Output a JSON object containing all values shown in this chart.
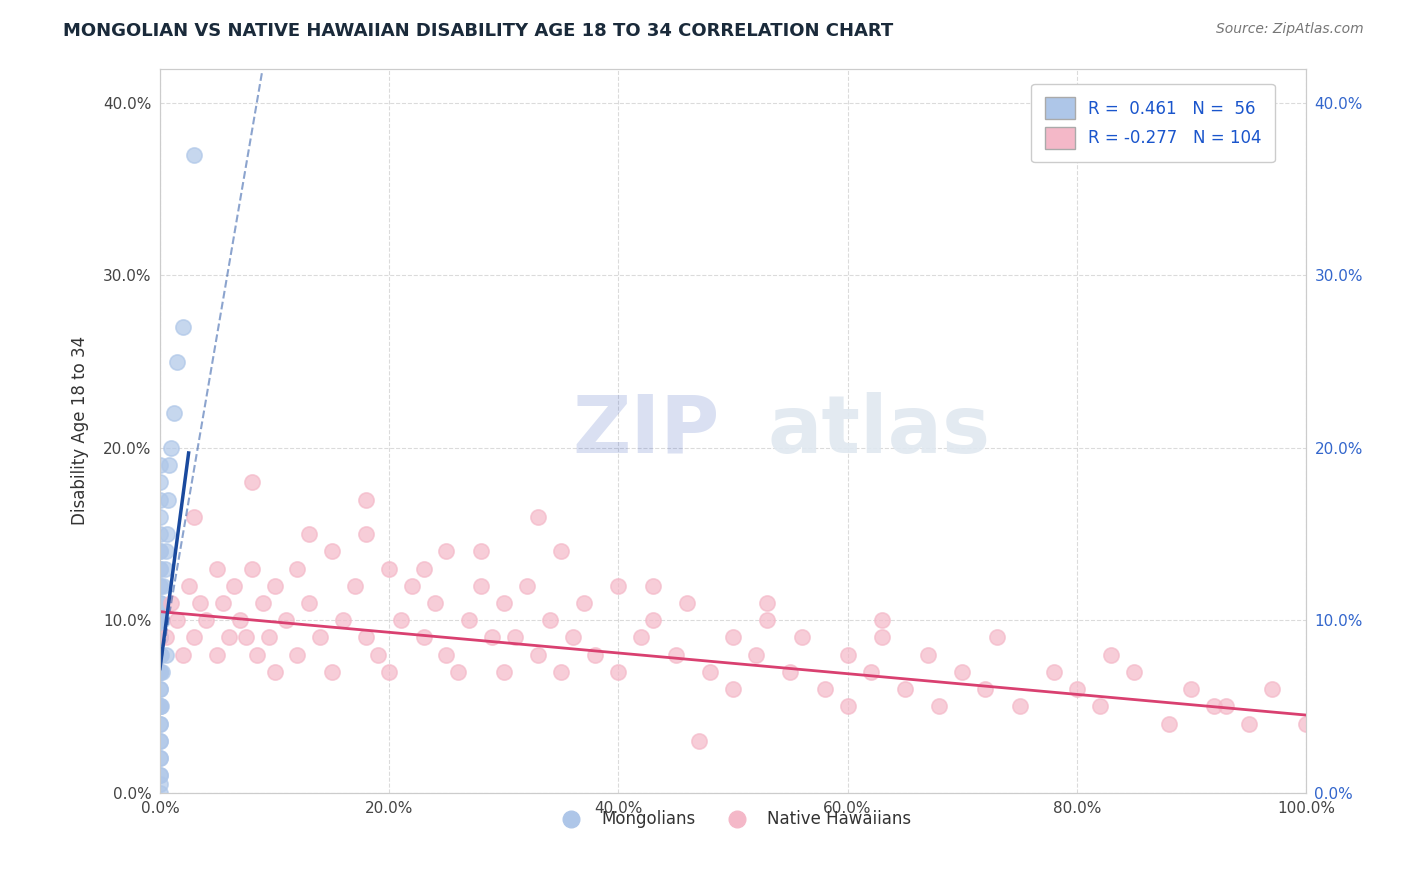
{
  "title": "MONGOLIAN VS NATIVE HAWAIIAN DISABILITY AGE 18 TO 34 CORRELATION CHART",
  "source": "Source: ZipAtlas.com",
  "ylabel": "Disability Age 18 to 34",
  "xlim": [
    0.0,
    1.0
  ],
  "ylim": [
    0.0,
    0.42
  ],
  "x_ticks": [
    0.0,
    0.2,
    0.4,
    0.6,
    0.8,
    1.0
  ],
  "x_tick_labels": [
    "0.0%",
    "20.0%",
    "40.0%",
    "60.0%",
    "80.0%",
    "100.0%"
  ],
  "y_ticks": [
    0.0,
    0.1,
    0.2,
    0.3,
    0.4
  ],
  "y_tick_labels": [
    "0.0%",
    "10.0%",
    "20.0%",
    "30.0%",
    "40.0%"
  ],
  "mongolian_R": 0.461,
  "mongolian_N": 56,
  "hawaiian_R": -0.277,
  "hawaiian_N": 104,
  "mongolian_color": "#aec6e8",
  "mongolian_line_color": "#1a4a9e",
  "hawaiian_color": "#f4b8c8",
  "hawaiian_line_color": "#d94070",
  "mongolian_scatter_x": [
    0.0,
    0.0,
    0.0,
    0.0,
    0.0,
    0.0,
    0.0,
    0.0,
    0.0,
    0.0,
    0.0,
    0.0,
    0.0,
    0.0,
    0.0,
    0.0,
    0.0,
    0.0,
    0.0,
    0.0,
    0.0,
    0.0,
    0.0,
    0.0,
    0.0,
    0.0,
    0.0,
    0.0,
    0.0,
    0.0,
    0.0,
    0.0,
    0.0,
    0.0,
    0.0,
    0.0,
    0.0,
    0.0,
    0.0,
    0.0,
    0.001,
    0.001,
    0.002,
    0.002,
    0.003,
    0.004,
    0.005,
    0.005,
    0.006,
    0.007,
    0.008,
    0.01,
    0.012,
    0.015,
    0.02,
    0.03
  ],
  "mongolian_scatter_y": [
    0.0,
    0.005,
    0.01,
    0.01,
    0.02,
    0.02,
    0.03,
    0.03,
    0.04,
    0.04,
    0.05,
    0.05,
    0.05,
    0.06,
    0.06,
    0.07,
    0.07,
    0.07,
    0.08,
    0.08,
    0.08,
    0.09,
    0.09,
    0.09,
    0.1,
    0.1,
    0.1,
    0.11,
    0.11,
    0.12,
    0.12,
    0.13,
    0.13,
    0.14,
    0.14,
    0.15,
    0.16,
    0.17,
    0.18,
    0.19,
    0.05,
    0.08,
    0.07,
    0.1,
    0.12,
    0.13,
    0.08,
    0.14,
    0.15,
    0.17,
    0.19,
    0.2,
    0.22,
    0.25,
    0.27,
    0.37
  ],
  "hawaiian_scatter_x": [
    0.005,
    0.01,
    0.015,
    0.02,
    0.025,
    0.03,
    0.035,
    0.04,
    0.05,
    0.05,
    0.055,
    0.06,
    0.065,
    0.07,
    0.075,
    0.08,
    0.085,
    0.09,
    0.095,
    0.1,
    0.1,
    0.11,
    0.12,
    0.12,
    0.13,
    0.14,
    0.15,
    0.15,
    0.16,
    0.17,
    0.18,
    0.18,
    0.19,
    0.2,
    0.2,
    0.21,
    0.22,
    0.23,
    0.24,
    0.25,
    0.25,
    0.26,
    0.27,
    0.28,
    0.29,
    0.3,
    0.3,
    0.31,
    0.32,
    0.33,
    0.34,
    0.35,
    0.35,
    0.36,
    0.37,
    0.38,
    0.4,
    0.4,
    0.42,
    0.43,
    0.45,
    0.46,
    0.48,
    0.5,
    0.5,
    0.52,
    0.53,
    0.55,
    0.56,
    0.58,
    0.6,
    0.6,
    0.62,
    0.63,
    0.65,
    0.67,
    0.68,
    0.7,
    0.72,
    0.75,
    0.78,
    0.8,
    0.82,
    0.85,
    0.88,
    0.9,
    0.92,
    0.95,
    0.97,
    1.0,
    0.03,
    0.08,
    0.13,
    0.18,
    0.23,
    0.28,
    0.33,
    0.43,
    0.53,
    0.63,
    0.73,
    0.83,
    0.93,
    0.47
  ],
  "hawaiian_scatter_y": [
    0.09,
    0.11,
    0.1,
    0.08,
    0.12,
    0.09,
    0.11,
    0.1,
    0.13,
    0.08,
    0.11,
    0.09,
    0.12,
    0.1,
    0.09,
    0.13,
    0.08,
    0.11,
    0.09,
    0.12,
    0.07,
    0.1,
    0.13,
    0.08,
    0.11,
    0.09,
    0.14,
    0.07,
    0.1,
    0.12,
    0.09,
    0.15,
    0.08,
    0.13,
    0.07,
    0.1,
    0.12,
    0.09,
    0.11,
    0.08,
    0.14,
    0.07,
    0.1,
    0.12,
    0.09,
    0.11,
    0.07,
    0.09,
    0.12,
    0.08,
    0.1,
    0.14,
    0.07,
    0.09,
    0.11,
    0.08,
    0.12,
    0.07,
    0.09,
    0.1,
    0.08,
    0.11,
    0.07,
    0.09,
    0.06,
    0.08,
    0.1,
    0.07,
    0.09,
    0.06,
    0.08,
    0.05,
    0.07,
    0.09,
    0.06,
    0.08,
    0.05,
    0.07,
    0.06,
    0.05,
    0.07,
    0.06,
    0.05,
    0.07,
    0.04,
    0.06,
    0.05,
    0.04,
    0.06,
    0.04,
    0.16,
    0.18,
    0.15,
    0.17,
    0.13,
    0.14,
    0.16,
    0.12,
    0.11,
    0.1,
    0.09,
    0.08,
    0.05,
    0.03
  ],
  "grid_color": "#cccccc",
  "background_color": "#ffffff",
  "watermark_color": "#e0e8f0"
}
